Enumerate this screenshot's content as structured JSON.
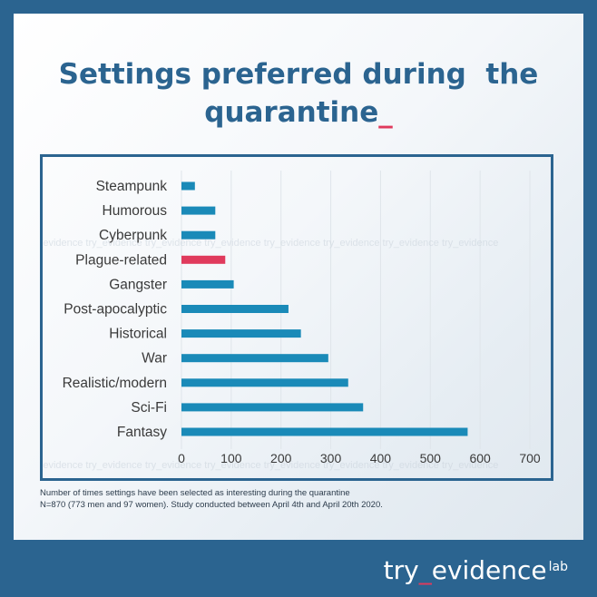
{
  "title": "Settings preferred during  the quarantine",
  "title_cursor": "_",
  "chart_data": {
    "type": "bar",
    "orientation": "horizontal",
    "categories": [
      "Steampunk",
      "Humorous",
      "Cyberpunk",
      "Plague-related",
      "Gangster",
      "Post-apocalyptic",
      "Historical",
      "War",
      "Realistic/modern",
      "Sci-Fi",
      "Fantasy"
    ],
    "values": [
      27,
      68,
      68,
      88,
      105,
      215,
      240,
      295,
      335,
      365,
      575
    ],
    "highlight_category": "Plague-related",
    "xlim": [
      0,
      700
    ],
    "xticks": [
      0,
      100,
      200,
      300,
      400,
      500,
      600,
      700
    ],
    "grid": true,
    "bar_color": "#1a8ab8",
    "highlight_color": "#e03a5c"
  },
  "watermark": "try_evidence",
  "notes": [
    "Number of times settings have been selected as interesting during the quarantine",
    "N=870 (773 men and 97 women). Study conducted between April 4th and April 20th 2020."
  ],
  "brand": {
    "pre": "try",
    "underscore": "_",
    "post": "evidence",
    "sup": "lab"
  }
}
